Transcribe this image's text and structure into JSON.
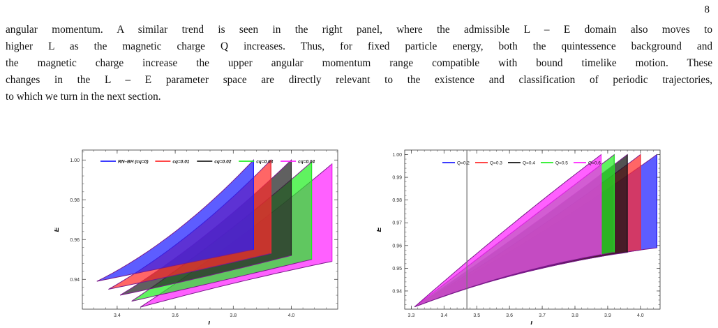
{
  "page": {
    "number": "8",
    "paragraph_lines": [
      "angular momentum.  A similar trend is seen in the right panel, where the admissible L – E domain also moves to",
      "higher L as the magnetic charge Q increases. Thus, for fixed particle energy, both the quintessence background and",
      "the magnetic charge increase the upper angular momentum range compatible with bound timelike motion.  These",
      "changes in the L – E parameter space are directly relevant to the existence and classification of periodic trajectories,",
      "to which we turn in the next section."
    ]
  },
  "chart_data": [
    {
      "type": "area",
      "xlabel": "L",
      "ylabel": "E",
      "xlim": [
        3.28,
        4.16
      ],
      "ylim": [
        0.925,
        1.005
      ],
      "xticks": [
        "3.4",
        "3.6",
        "3.8",
        "4.0"
      ],
      "xtick_values": [
        3.4,
        3.6,
        3.8,
        4.0
      ],
      "yticks": [
        "0.94",
        "0.96",
        "0.98",
        "1.00"
      ],
      "ytick_values": [
        0.94,
        0.96,
        0.98,
        1.0
      ],
      "legend_position": "top",
      "series": [
        {
          "name": "RN–BH (cq=0)",
          "color": "#1f1fff",
          "upper": [
            [
              3.33,
              0.939
            ],
            [
              3.6,
              0.964
            ],
            [
              3.87,
              1.0
            ]
          ],
          "lower": [
            [
              3.33,
              0.939
            ],
            [
              3.6,
              0.947
            ],
            [
              3.87,
              0.955
            ]
          ]
        },
        {
          "name": "cq=0.01",
          "color": "#ff2b2b",
          "upper": [
            [
              3.37,
              0.935
            ],
            [
              3.66,
              0.964
            ],
            [
              3.93,
              1.0
            ]
          ],
          "lower": [
            [
              3.37,
              0.935
            ],
            [
              3.66,
              0.944
            ],
            [
              3.93,
              0.953
            ]
          ]
        },
        {
          "name": "cq=0.02",
          "color": "#222222",
          "upper": [
            [
              3.41,
              0.932
            ],
            [
              3.72,
              0.964
            ],
            [
              4.0,
              1.0
            ]
          ],
          "lower": [
            [
              3.41,
              0.932
            ],
            [
              3.72,
              0.942
            ],
            [
              4.0,
              0.952
            ]
          ]
        },
        {
          "name": "cq=0.03",
          "color": "#22ee22",
          "upper": [
            [
              3.45,
              0.929
            ],
            [
              3.78,
              0.964
            ],
            [
              4.07,
              0.999
            ]
          ],
          "lower": [
            [
              3.45,
              0.929
            ],
            [
              3.78,
              0.94
            ],
            [
              4.07,
              0.95
            ]
          ]
        },
        {
          "name": "cq=0.04",
          "color": "#ff22ff",
          "upper": [
            [
              3.48,
              0.926
            ],
            [
              3.83,
              0.962
            ],
            [
              4.14,
              0.998
            ]
          ],
          "lower": [
            [
              3.48,
              0.926
            ],
            [
              3.83,
              0.939
            ],
            [
              4.14,
              0.949
            ]
          ]
        }
      ]
    },
    {
      "type": "area",
      "xlabel": "L",
      "ylabel": "E",
      "xlim": [
        3.28,
        4.06
      ],
      "ylim": [
        0.932,
        1.002
      ],
      "xticks": [
        "3.3",
        "3.4",
        "3.5",
        "3.6",
        "3.7",
        "3.8",
        "3.9",
        "4.0"
      ],
      "xtick_values": [
        3.3,
        3.4,
        3.5,
        3.6,
        3.7,
        3.8,
        3.9,
        4.0
      ],
      "yticks": [
        "0.94",
        "0.95",
        "0.96",
        "0.97",
        "0.98",
        "0.99",
        "1.00"
      ],
      "ytick_values": [
        0.94,
        0.95,
        0.96,
        0.97,
        0.98,
        0.99,
        1.0
      ],
      "vertical_line_x": 3.47,
      "legend_position": "top",
      "series": [
        {
          "name": "Q=0.2",
          "color": "#1f1fff",
          "upper": [
            [
              3.33,
              0.935
            ],
            [
              3.7,
              0.966
            ],
            [
              4.05,
              1.0
            ]
          ],
          "lower": [
            [
              3.33,
              0.935
            ],
            [
              3.7,
              0.95
            ],
            [
              4.05,
              0.959
            ]
          ]
        },
        {
          "name": "Q=0.3",
          "color": "#ff2b2b",
          "upper": [
            [
              3.32,
              0.934
            ],
            [
              3.67,
              0.966
            ],
            [
              4.0,
              1.0
            ]
          ],
          "lower": [
            [
              3.32,
              0.934
            ],
            [
              3.67,
              0.949
            ],
            [
              4.0,
              0.958
            ]
          ]
        },
        {
          "name": "Q=0.4",
          "color": "#111111",
          "upper": [
            [
              3.32,
              0.934
            ],
            [
              3.64,
              0.966
            ],
            [
              3.96,
              1.0
            ]
          ],
          "lower": [
            [
              3.32,
              0.934
            ],
            [
              3.64,
              0.948
            ],
            [
              3.96,
              0.957
            ]
          ]
        },
        {
          "name": "Q=0.5",
          "color": "#22ee22",
          "upper": [
            [
              3.31,
              0.933
            ],
            [
              3.61,
              0.966
            ],
            [
              3.92,
              1.0
            ]
          ],
          "lower": [
            [
              3.31,
              0.933
            ],
            [
              3.61,
              0.947
            ],
            [
              3.92,
              0.957
            ]
          ]
        },
        {
          "name": "Q=0.6",
          "color": "#ff22ff",
          "upper": [
            [
              3.31,
              0.933
            ],
            [
              3.58,
              0.966
            ],
            [
              3.88,
              1.0
            ]
          ],
          "lower": [
            [
              3.31,
              0.933
            ],
            [
              3.58,
              0.946
            ],
            [
              3.88,
              0.956
            ]
          ]
        }
      ]
    }
  ]
}
